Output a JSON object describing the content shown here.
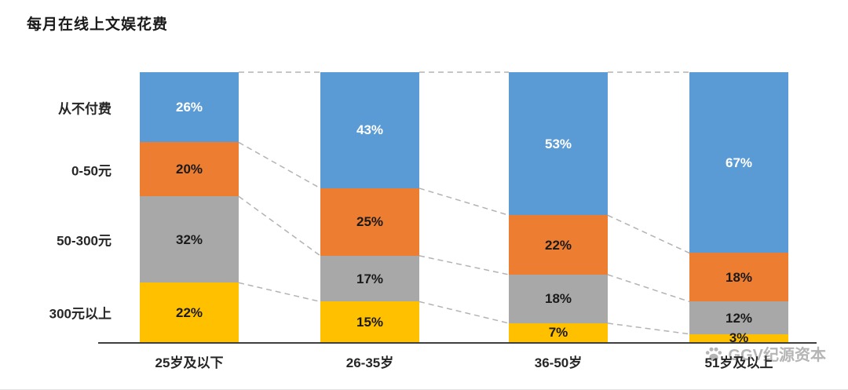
{
  "title": "每月在线上文娱花费",
  "chart_data": {
    "type": "bar",
    "variant": "100pct-stacked-column",
    "title": "每月在线上文娱花费",
    "categories": [
      "25岁及以下",
      "26-35岁",
      "36-50岁",
      "51岁及以上"
    ],
    "series": [
      {
        "name": "从不付费",
        "color": "#5B9BD5",
        "text_color": "#ffffff",
        "values": [
          26,
          43,
          53,
          67
        ]
      },
      {
        "name": "0-50元",
        "color": "#ED7D31",
        "text_color": "#1a1a1a",
        "values": [
          20,
          25,
          22,
          18
        ]
      },
      {
        "name": "50-300元",
        "color": "#A8A8A8",
        "text_color": "#1a1a1a",
        "values": [
          32,
          17,
          18,
          12
        ]
      },
      {
        "name": "300元以上",
        "color": "#FFC000",
        "text_color": "#1a1a1a",
        "values": [
          22,
          15,
          7,
          3
        ]
      }
    ],
    "value_suffix": "%",
    "ylim": [
      0,
      100
    ],
    "grid": false,
    "legend_position": "left-row-labels",
    "connectors": "dashed",
    "connector_color": "#b3b3b3",
    "axis_line_color": "#3f3f3f"
  },
  "watermark": {
    "text": "GGV纪源资本",
    "icon": "paw-icon"
  }
}
